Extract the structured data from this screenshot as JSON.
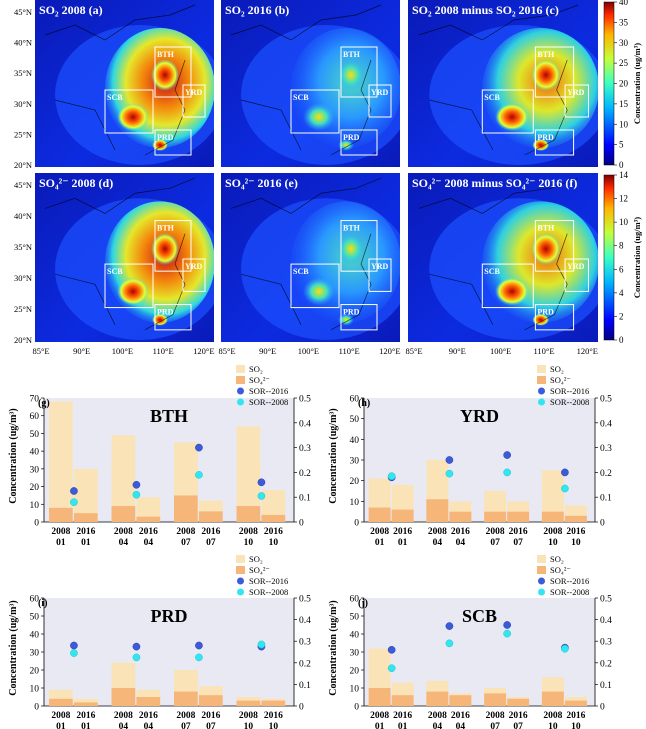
{
  "maps": {
    "panels": [
      {
        "title": "SO₂ 2008 (a)",
        "intensity": "high",
        "pollutant": "so2"
      },
      {
        "title": "SO₂ 2016 (b)",
        "intensity": "low",
        "pollutant": "so2"
      },
      {
        "title": "SO₂ 2008 minus SO₂ 2016 (c)",
        "intensity": "mid",
        "pollutant": "so2"
      },
      {
        "title": "SO₄²⁻ 2008 (d)",
        "intensity": "high",
        "pollutant": "so4"
      },
      {
        "title": "SO₄²⁻ 2016 (e)",
        "intensity": "low",
        "pollutant": "so4"
      },
      {
        "title": "SO₄²⁻ 2008 minus SO₄²⁻ 2016 (f)",
        "intensity": "mid",
        "pollutant": "so4"
      }
    ],
    "region_labels": [
      "BTH",
      "SCB",
      "YRD",
      "PRD"
    ],
    "lat_labels": [
      "45°N",
      "40°N",
      "35°N",
      "30°N",
      "25°N",
      "20°N"
    ],
    "lon_labels": [
      "85°E",
      "90°E",
      "100°E",
      "110°E",
      "120°E"
    ],
    "colorbars": [
      {
        "label": "Concentration (ug/m³)",
        "ticks": [
          40,
          35,
          30,
          25,
          20,
          15,
          10,
          5,
          0
        ]
      },
      {
        "label": "Concentration (ug/m³)",
        "ticks": [
          14,
          12,
          10,
          8,
          6,
          4,
          2,
          0
        ]
      }
    ]
  },
  "chart_data": [
    {
      "type": "bar",
      "panel": "(g)",
      "title": "BTH",
      "categories": [
        "2008 01",
        "2016 01",
        "2008 04",
        "2016 04",
        "2008 07",
        "2016 07",
        "2008 10",
        "2016 10"
      ],
      "series": [
        {
          "name": "SO₂",
          "values": [
            68,
            30,
            49,
            14,
            45,
            12,
            54,
            18
          ]
        },
        {
          "name": "SO₄²⁻",
          "values": [
            8,
            5,
            9,
            3,
            15,
            6,
            9,
            4
          ]
        }
      ],
      "sor_series": [
        {
          "name": "SOR--2016",
          "values": [
            0.125,
            0.15,
            0.3,
            0.16
          ]
        },
        {
          "name": "SOR--2008",
          "values": [
            0.08,
            0.11,
            0.19,
            0.105
          ]
        }
      ],
      "ylabel": "Concentration (ug/m³)",
      "ylim": [
        0,
        70
      ],
      "yticks": [
        0,
        10,
        20,
        30,
        40,
        50,
        60,
        70
      ],
      "y2lim": [
        0,
        0.5
      ],
      "y2ticks": [
        0,
        0.1,
        0.2,
        0.3,
        0.4,
        0.5
      ],
      "legend": [
        "SO₂",
        "SO₄²⁻",
        "SOR--2016",
        "SOR--2008"
      ]
    },
    {
      "type": "bar",
      "panel": "(h)",
      "title": "YRD",
      "categories": [
        "2008 01",
        "2016 01",
        "2008 04",
        "2016 04",
        "2008 07",
        "2016 07",
        "2008 10",
        "2016 10"
      ],
      "series": [
        {
          "name": "SO₂",
          "values": [
            21,
            18,
            30,
            10,
            15,
            10,
            25,
            8
          ]
        },
        {
          "name": "SO₄²⁻",
          "values": [
            7,
            6,
            11,
            5,
            5,
            5,
            5,
            3
          ]
        }
      ],
      "sor_series": [
        {
          "name": "SOR--2016",
          "values": [
            0.18,
            0.25,
            0.27,
            0.2
          ]
        },
        {
          "name": "SOR--2008",
          "values": [
            0.185,
            0.195,
            0.2,
            0.135
          ]
        }
      ],
      "ylabel": "Concentration (ug/m³)",
      "ylim": [
        0,
        60
      ],
      "yticks": [
        0,
        10,
        20,
        30,
        40,
        50,
        60
      ],
      "y2lim": [
        0,
        0.5
      ],
      "y2ticks": [
        0,
        0.1,
        0.2,
        0.3,
        0.4,
        0.5
      ],
      "legend": [
        "SO₂",
        "SO₄²⁻",
        "SOR--2016",
        "SOR--2008"
      ]
    },
    {
      "type": "bar",
      "panel": "(i)",
      "title": "PRD",
      "categories": [
        "2008 01",
        "2016 01",
        "2008 04",
        "2016 04",
        "2008 07",
        "2016 07",
        "2008 10",
        "2016 10"
      ],
      "series": [
        {
          "name": "SO₂",
          "values": [
            9,
            4,
            24,
            9,
            20,
            11,
            5,
            4
          ]
        },
        {
          "name": "SO₄²⁻",
          "values": [
            4,
            2,
            10,
            5,
            8,
            6,
            3,
            3
          ]
        }
      ],
      "sor_series": [
        {
          "name": "SOR--2016",
          "values": [
            0.28,
            0.275,
            0.28,
            0.275
          ]
        },
        {
          "name": "SOR--2008",
          "values": [
            0.245,
            0.225,
            0.225,
            0.285
          ]
        }
      ],
      "ylabel": "Concentration (ug/m³)",
      "ylim": [
        0,
        60
      ],
      "yticks": [
        0,
        10,
        20,
        30,
        40,
        50,
        60
      ],
      "y2lim": [
        0,
        0.5
      ],
      "y2ticks": [
        0,
        0.1,
        0.2,
        0.3,
        0.4,
        0.5
      ],
      "legend": [
        "SO₂",
        "SO₄²⁻",
        "SOR--2016",
        "SOR--2008"
      ]
    },
    {
      "type": "bar",
      "panel": "(j)",
      "title": "SCB",
      "categories": [
        "2008 01",
        "2016 01",
        "2008 04",
        "2016 04",
        "2008 07",
        "2016 07",
        "2008 10",
        "2016 10"
      ],
      "series": [
        {
          "name": "SO₂",
          "values": [
            32,
            13,
            14,
            7,
            10,
            5,
            16,
            5
          ]
        },
        {
          "name": "SO₄²⁻",
          "values": [
            10,
            6,
            8,
            6,
            7,
            4,
            8,
            3
          ]
        }
      ],
      "sor_series": [
        {
          "name": "SOR--2016",
          "values": [
            0.26,
            0.37,
            0.375,
            0.27
          ]
        },
        {
          "name": "SOR--2008",
          "values": [
            0.175,
            0.29,
            0.335,
            0.265
          ]
        }
      ],
      "ylabel": "Concentration (ug/m³)",
      "ylim": [
        0,
        60
      ],
      "yticks": [
        0,
        10,
        20,
        30,
        40,
        50,
        60
      ],
      "y2lim": [
        0,
        0.5
      ],
      "y2ticks": [
        0,
        0.1,
        0.2,
        0.3,
        0.4,
        0.5
      ],
      "legend": [
        "SO₂",
        "SO₄²⁻",
        "SOR--2016",
        "SOR--2008"
      ]
    }
  ],
  "colors": {
    "so2_bar": "#fbe3b8",
    "so4_bar": "#f6b67a",
    "sor2016": "#3b5bd9",
    "sor2008": "#33e5ef",
    "chart_bg": "#e9e9f4",
    "map_bg": "#0b1fd6"
  }
}
